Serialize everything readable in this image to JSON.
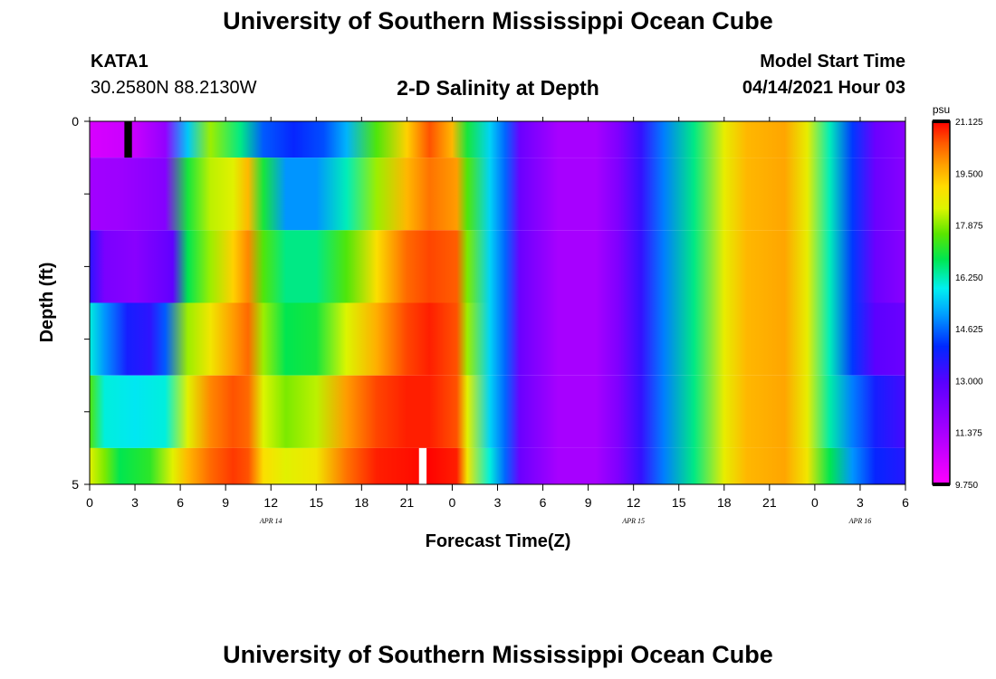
{
  "header": {
    "title": "University of Southern Mississippi Ocean Cube",
    "station": "KATA1",
    "coords": "30.2580N  88.2130W",
    "plot_title": "2-D Salinity at Depth",
    "start_label": "Model Start Time",
    "start_value": "04/14/2021 Hour 03"
  },
  "footer": {
    "title": "University of Southern Mississippi Ocean Cube"
  },
  "chart_data": {
    "type": "heatmap",
    "title": "2-D Salinity at Depth",
    "xlabel": "Forecast Time(Z)",
    "ylabel": "Depth (ft)",
    "xlim": [
      0,
      54
    ],
    "ylim": [
      5,
      0
    ],
    "x_ticks": [
      0,
      3,
      6,
      9,
      12,
      15,
      18,
      21,
      24,
      27,
      30,
      33,
      36,
      39,
      42,
      45,
      48,
      51,
      54
    ],
    "x_tick_labels": [
      "0",
      "3",
      "6",
      "9",
      "12",
      "15",
      "18",
      "21",
      "0",
      "3",
      "6",
      "9",
      "12",
      "15",
      "18",
      "21",
      "0",
      "3",
      "6"
    ],
    "y_tick_labels": [
      "0",
      "5"
    ],
    "date_labels": [
      {
        "label": "APR 14",
        "x": 12
      },
      {
        "label": "APR 15",
        "x": 36
      },
      {
        "label": "APR 16",
        "x": 51
      }
    ],
    "colorbar": {
      "unit": "psu",
      "min": 9.75,
      "max": 21.125,
      "tick_labels": [
        "21.125",
        "19.500",
        "17.875",
        "16.250",
        "14.625",
        "13.000",
        "11.375",
        "9.750"
      ]
    },
    "layers": [
      {
        "depth_range": [
          0,
          0.5
        ],
        "knots": [
          [
            0,
            10.5
          ],
          [
            1,
            10.6
          ],
          [
            3,
            10.8
          ],
          [
            5,
            11.8
          ],
          [
            6.5,
            15.5
          ],
          [
            8,
            18
          ],
          [
            10,
            16.5
          ],
          [
            11.5,
            14.5
          ],
          [
            13.5,
            14.0
          ],
          [
            15.5,
            14.4
          ],
          [
            17,
            15.3
          ],
          [
            19,
            17.5
          ],
          [
            21,
            19.2
          ],
          [
            22.5,
            20.5
          ],
          [
            24,
            19.5
          ],
          [
            25,
            17.0
          ],
          [
            26.5,
            15.6
          ],
          [
            27.5,
            14.6
          ],
          [
            28.5,
            12.6
          ],
          [
            31,
            11.4
          ],
          [
            33.5,
            11.4
          ],
          [
            35,
            12.2
          ],
          [
            36.5,
            13.4
          ],
          [
            38,
            14.8
          ],
          [
            40,
            16.5
          ],
          [
            42,
            18.6
          ],
          [
            43.5,
            19.5
          ],
          [
            46,
            19.7
          ],
          [
            47.5,
            18.6
          ],
          [
            49,
            16.2
          ],
          [
            50.5,
            14.2
          ],
          [
            52,
            12.6
          ],
          [
            54,
            12.0
          ]
        ]
      },
      {
        "depth_range": [
          0.5,
          1.5
        ],
        "knots": [
          [
            0,
            11.5
          ],
          [
            2,
            11.6
          ],
          [
            5,
            12.1
          ],
          [
            6.5,
            17.0
          ],
          [
            8,
            18.2
          ],
          [
            9.5,
            18.5
          ],
          [
            10.5,
            19.5
          ],
          [
            11.5,
            17.0
          ],
          [
            13,
            15.0
          ],
          [
            15,
            15.0
          ],
          [
            17,
            16.2
          ],
          [
            19,
            18.0
          ],
          [
            21,
            19.5
          ],
          [
            22.5,
            20.2
          ],
          [
            24.3,
            19.8
          ],
          [
            25,
            17.5
          ],
          [
            26.5,
            15.6
          ],
          [
            27.5,
            14.6
          ],
          [
            28.5,
            12.6
          ],
          [
            31,
            11.4
          ],
          [
            33.5,
            11.4
          ],
          [
            35,
            12.2
          ],
          [
            36.5,
            13.4
          ],
          [
            38,
            14.8
          ],
          [
            40,
            16.5
          ],
          [
            42,
            18.6
          ],
          [
            43.5,
            19.5
          ],
          [
            46,
            19.7
          ],
          [
            47.5,
            18.6
          ],
          [
            49,
            16.2
          ],
          [
            50.5,
            14.2
          ],
          [
            52,
            12.6
          ],
          [
            54,
            12.0
          ]
        ]
      },
      {
        "depth_range": [
          1.5,
          2.5
        ],
        "knots": [
          [
            0,
            13.5
          ],
          [
            1,
            12.3
          ],
          [
            3,
            12.0
          ],
          [
            5.5,
            12.8
          ],
          [
            6.5,
            16.8
          ],
          [
            8,
            18.0
          ],
          [
            9.5,
            19.2
          ],
          [
            10.5,
            20.0
          ],
          [
            11.5,
            17.5
          ],
          [
            13,
            16.5
          ],
          [
            15,
            16.5
          ],
          [
            17,
            17.5
          ],
          [
            19,
            19.0
          ],
          [
            21,
            20.3
          ],
          [
            22.5,
            20.6
          ],
          [
            24.3,
            20.4
          ],
          [
            25,
            17.8
          ],
          [
            26.5,
            15.6
          ],
          [
            27.5,
            14.6
          ],
          [
            28.5,
            12.6
          ],
          [
            31,
            11.4
          ],
          [
            33.5,
            11.4
          ],
          [
            35,
            12.2
          ],
          [
            36.5,
            13.4
          ],
          [
            38,
            14.8
          ],
          [
            40,
            16.5
          ],
          [
            42,
            18.6
          ],
          [
            43.5,
            19.5
          ],
          [
            46,
            19.7
          ],
          [
            47.5,
            18.6
          ],
          [
            49,
            16.2
          ],
          [
            50.5,
            14.2
          ],
          [
            52,
            12.6
          ],
          [
            54,
            12.0
          ]
        ]
      },
      {
        "depth_range": [
          2.5,
          3.5
        ],
        "knots": [
          [
            0,
            16.0
          ],
          [
            1,
            15.0
          ],
          [
            2.5,
            13.8
          ],
          [
            4,
            13.5
          ],
          [
            5,
            14.5
          ],
          [
            6.5,
            18.0
          ],
          [
            8,
            18.8
          ],
          [
            9.5,
            19.8
          ],
          [
            10.5,
            20.3
          ],
          [
            11.5,
            18.0
          ],
          [
            13,
            16.8
          ],
          [
            15,
            17.0
          ],
          [
            17,
            18.4
          ],
          [
            19,
            19.6
          ],
          [
            21,
            20.6
          ],
          [
            22.5,
            20.9
          ],
          [
            24.3,
            20.5
          ],
          [
            25,
            18.0
          ],
          [
            26.5,
            15.6
          ],
          [
            27.5,
            14.6
          ],
          [
            28.5,
            12.6
          ],
          [
            31,
            11.4
          ],
          [
            33.5,
            11.4
          ],
          [
            35,
            12.2
          ],
          [
            36.5,
            13.4
          ],
          [
            38,
            14.8
          ],
          [
            40,
            16.5
          ],
          [
            42,
            18.6
          ],
          [
            43.5,
            19.5
          ],
          [
            46,
            19.7
          ],
          [
            47.5,
            18.6
          ],
          [
            49,
            16.2
          ],
          [
            50.5,
            14.2
          ],
          [
            52,
            12.9
          ],
          [
            54,
            12.6
          ]
        ]
      },
      {
        "depth_range": [
          3.5,
          4.5
        ],
        "knots": [
          [
            0,
            17.5
          ],
          [
            1,
            16.0
          ],
          [
            3,
            15.8
          ],
          [
            5,
            16.0
          ],
          [
            6.5,
            18.5
          ],
          [
            8,
            20.0
          ],
          [
            9.5,
            20.5
          ],
          [
            10.5,
            20.3
          ],
          [
            11.5,
            18.4
          ],
          [
            13,
            17.8
          ],
          [
            15,
            18.2
          ],
          [
            17,
            19.8
          ],
          [
            19,
            20.6
          ],
          [
            21,
            20.9
          ],
          [
            22.5,
            20.9
          ],
          [
            24.3,
            20.5
          ],
          [
            25,
            18.5
          ],
          [
            26.5,
            15.6
          ],
          [
            27.5,
            14.6
          ],
          [
            28.5,
            12.6
          ],
          [
            31,
            11.4
          ],
          [
            33.5,
            11.4
          ],
          [
            35,
            12.2
          ],
          [
            36.5,
            13.4
          ],
          [
            38,
            14.8
          ],
          [
            40,
            16.5
          ],
          [
            42,
            18.6
          ],
          [
            43.5,
            19.5
          ],
          [
            46,
            19.7
          ],
          [
            47.5,
            18.6
          ],
          [
            49,
            16.3
          ],
          [
            50.5,
            14.8
          ],
          [
            52,
            13.8
          ],
          [
            54,
            13.2
          ]
        ]
      },
      {
        "depth_range": [
          4.5,
          5
        ],
        "knots": [
          [
            0,
            18.5
          ],
          [
            1,
            17.8
          ],
          [
            2,
            16.8
          ],
          [
            4,
            17.2
          ],
          [
            5.5,
            18.5
          ],
          [
            6.5,
            19.5
          ],
          [
            8,
            20.3
          ],
          [
            9.5,
            20.7
          ],
          [
            10.5,
            20.5
          ],
          [
            11.5,
            19.0
          ],
          [
            13,
            18.5
          ],
          [
            15,
            18.8
          ],
          [
            17,
            20.2
          ],
          [
            19,
            20.9
          ],
          [
            21,
            21.0
          ],
          [
            22.5,
            21.1
          ],
          [
            24.3,
            20.9
          ],
          [
            25,
            18.8
          ],
          [
            26.5,
            16.0
          ],
          [
            27.5,
            14.6
          ],
          [
            28.5,
            12.6
          ],
          [
            31,
            11.4
          ],
          [
            33.5,
            11.4
          ],
          [
            35,
            12.2
          ],
          [
            36.5,
            13.4
          ],
          [
            38,
            14.8
          ],
          [
            40,
            16.5
          ],
          [
            42,
            18.6
          ],
          [
            43.5,
            19.5
          ],
          [
            46,
            19.7
          ],
          [
            47.5,
            18.8
          ],
          [
            49,
            16.8
          ],
          [
            50.5,
            15.0
          ],
          [
            52,
            14.0
          ],
          [
            54,
            13.6
          ]
        ]
      }
    ],
    "markers": [
      {
        "color": "#000000",
        "x": [
          2.3,
          2.8
        ],
        "depth_range": [
          0,
          0.5
        ]
      },
      {
        "color": "#ffffff",
        "x": [
          21.8,
          22.3
        ],
        "depth_range": [
          4.5,
          5
        ]
      }
    ]
  }
}
